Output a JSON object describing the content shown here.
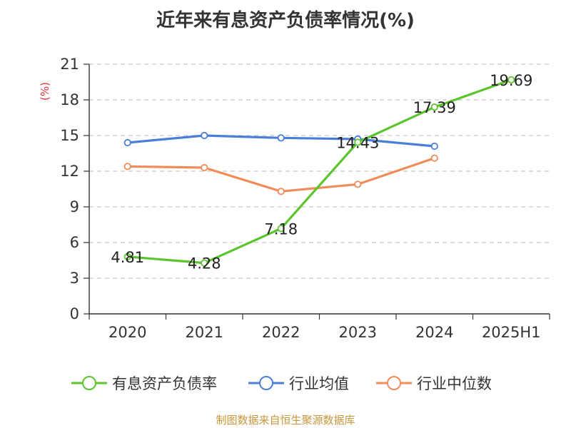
{
  "title": "近年来有息资产负债率情况(%)",
  "source": "制图数据来自恒生聚源数据库",
  "chart_data": {
    "type": "line",
    "title": "近年来有息资产负债率情况(%)",
    "ylabel": "(%)",
    "xlabel": "",
    "categories": [
      "2020",
      "2021",
      "2022",
      "2023",
      "2024",
      "2025H1"
    ],
    "ylim": [
      0,
      21
    ],
    "yticks": [
      0,
      3,
      6,
      9,
      12,
      15,
      18,
      21
    ],
    "grid": true,
    "legend_position": "bottom",
    "series": [
      {
        "name": "有息资产负债率",
        "color": "#5cc42c",
        "values": [
          4.81,
          4.28,
          7.18,
          14.43,
          17.39,
          19.69
        ],
        "labels": [
          "4.81",
          "4.28",
          "7.18",
          "14.43",
          "17.39",
          "19.69"
        ]
      },
      {
        "name": "行业均值",
        "color": "#4a7fd9",
        "values": [
          14.4,
          15.0,
          14.8,
          14.7,
          14.1,
          null
        ]
      },
      {
        "name": "行业中位数",
        "color": "#f08c5a",
        "values": [
          12.4,
          12.3,
          10.3,
          10.9,
          13.1,
          null
        ]
      }
    ]
  }
}
